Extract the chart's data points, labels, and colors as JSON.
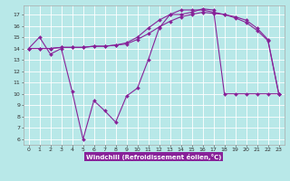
{
  "x": [
    0,
    1,
    2,
    3,
    4,
    5,
    6,
    7,
    8,
    9,
    10,
    11,
    12,
    13,
    14,
    15,
    16,
    17,
    18,
    19,
    20,
    21,
    22,
    23
  ],
  "line1": [
    14,
    15,
    13.5,
    14,
    10.2,
    6,
    9.4,
    8.5,
    7.5,
    9.8,
    10.5,
    13,
    15.8,
    17,
    17,
    17.2,
    17.5,
    17.4,
    10,
    10,
    10,
    10,
    10,
    10
  ],
  "line2": [
    14,
    14.0,
    14.0,
    14.1,
    14.1,
    14.1,
    14.2,
    14.2,
    14.3,
    14.4,
    14.8,
    15.3,
    15.9,
    16.4,
    16.8,
    17.0,
    17.2,
    17.1,
    17.0,
    16.8,
    16.5,
    15.8,
    14.8,
    10
  ],
  "line3": [
    14,
    14.0,
    14.0,
    14.1,
    14.1,
    14.1,
    14.2,
    14.2,
    14.3,
    14.5,
    15.0,
    15.8,
    16.5,
    17.0,
    17.4,
    17.4,
    17.4,
    17.2,
    17.0,
    16.7,
    16.3,
    15.6,
    14.7,
    10
  ],
  "line_color": "#882299",
  "bg_color": "#b8e8e8",
  "grid_color": "#ffffff",
  "xlabel": "Windchill (Refroidissement éolien,°C)",
  "ylim_min": 5.5,
  "ylim_max": 17.8,
  "xlim_min": -0.5,
  "xlim_max": 23.5,
  "yticks": [
    6,
    7,
    8,
    9,
    10,
    11,
    12,
    13,
    14,
    15,
    16,
    17
  ],
  "xticks": [
    0,
    1,
    2,
    3,
    4,
    5,
    6,
    7,
    8,
    9,
    10,
    11,
    12,
    13,
    14,
    15,
    16,
    17,
    18,
    19,
    20,
    21,
    22,
    23
  ],
  "tick_fontsize": 4.5,
  "xlabel_fontsize": 5.0,
  "line_width": 0.8,
  "marker_size": 2.0
}
